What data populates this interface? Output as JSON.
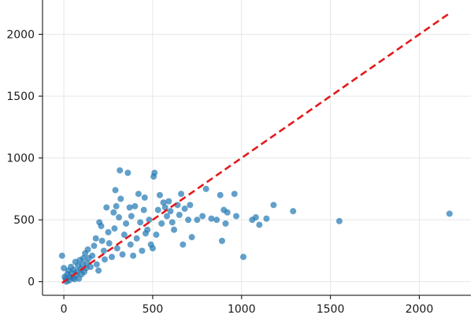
{
  "chart_data": {
    "type": "scatter",
    "title": "",
    "xlabel": "",
    "ylabel": "",
    "xlim": [
      -120,
      2290
    ],
    "ylim": [
      -110,
      2290
    ],
    "x_ticks": [
      0,
      500,
      1000,
      1500,
      2000
    ],
    "y_ticks": [
      0,
      500,
      1000,
      1500,
      2000
    ],
    "grid": true,
    "colors": {
      "points": "#1f77b4",
      "reference_line": "#e31a1c",
      "grid": "#e6e6e6",
      "axes": "#000000"
    },
    "reference_line": {
      "style": "dashed",
      "points": [
        [
          -10,
          -10
        ],
        [
          2170,
          2170
        ]
      ]
    },
    "series": [
      {
        "points": [
          [
            -10,
            210
          ],
          [
            0,
            110
          ],
          [
            5,
            40
          ],
          [
            10,
            20
          ],
          [
            15,
            0
          ],
          [
            20,
            60
          ],
          [
            25,
            90
          ],
          [
            30,
            10
          ],
          [
            35,
            40
          ],
          [
            40,
            120
          ],
          [
            45,
            70
          ],
          [
            50,
            30
          ],
          [
            55,
            95
          ],
          [
            60,
            20
          ],
          [
            65,
            160
          ],
          [
            70,
            55
          ],
          [
            75,
            80
          ],
          [
            80,
            130
          ],
          [
            85,
            25
          ],
          [
            90,
            175
          ],
          [
            95,
            100
          ],
          [
            100,
            60
          ],
          [
            105,
            140
          ],
          [
            110,
            190
          ],
          [
            115,
            80
          ],
          [
            120,
            230
          ],
          [
            125,
            110
          ],
          [
            130,
            150
          ],
          [
            135,
            260
          ],
          [
            140,
            190
          ],
          [
            150,
            120
          ],
          [
            160,
            210
          ],
          [
            170,
            290
          ],
          [
            180,
            350
          ],
          [
            185,
            140
          ],
          [
            195,
            90
          ],
          [
            200,
            480
          ],
          [
            210,
            450
          ],
          [
            215,
            330
          ],
          [
            225,
            250
          ],
          [
            230,
            180
          ],
          [
            240,
            600
          ],
          [
            250,
            400
          ],
          [
            255,
            310
          ],
          [
            270,
            200
          ],
          [
            280,
            560
          ],
          [
            285,
            430
          ],
          [
            290,
            740
          ],
          [
            295,
            610
          ],
          [
            300,
            270
          ],
          [
            310,
            520
          ],
          [
            315,
            900
          ],
          [
            320,
            670
          ],
          [
            330,
            220
          ],
          [
            340,
            380
          ],
          [
            350,
            470
          ],
          [
            360,
            880
          ],
          [
            370,
            600
          ],
          [
            375,
            300
          ],
          [
            380,
            530
          ],
          [
            390,
            210
          ],
          [
            400,
            610
          ],
          [
            410,
            350
          ],
          [
            420,
            710
          ],
          [
            430,
            480
          ],
          [
            440,
            250
          ],
          [
            450,
            580
          ],
          [
            455,
            680
          ],
          [
            460,
            390
          ],
          [
            470,
            420
          ],
          [
            480,
            500
          ],
          [
            490,
            300
          ],
          [
            500,
            270
          ],
          [
            505,
            850
          ],
          [
            510,
            880
          ],
          [
            520,
            380
          ],
          [
            530,
            580
          ],
          [
            540,
            700
          ],
          [
            550,
            470
          ],
          [
            560,
            640
          ],
          [
            570,
            600
          ],
          [
            580,
            530
          ],
          [
            590,
            650
          ],
          [
            600,
            570
          ],
          [
            610,
            480
          ],
          [
            620,
            420
          ],
          [
            640,
            620
          ],
          [
            650,
            540
          ],
          [
            660,
            710
          ],
          [
            670,
            300
          ],
          [
            680,
            590
          ],
          [
            700,
            500
          ],
          [
            710,
            620
          ],
          [
            720,
            360
          ],
          [
            750,
            500
          ],
          [
            780,
            530
          ],
          [
            800,
            750
          ],
          [
            830,
            510
          ],
          [
            860,
            500
          ],
          [
            880,
            700
          ],
          [
            890,
            330
          ],
          [
            900,
            580
          ],
          [
            910,
            470
          ],
          [
            920,
            560
          ],
          [
            960,
            710
          ],
          [
            970,
            530
          ],
          [
            1010,
            200
          ],
          [
            1060,
            500
          ],
          [
            1080,
            520
          ],
          [
            1100,
            460
          ],
          [
            1140,
            510
          ],
          [
            1180,
            620
          ],
          [
            1290,
            570
          ],
          [
            1550,
            490
          ],
          [
            2170,
            550
          ]
        ]
      }
    ]
  }
}
